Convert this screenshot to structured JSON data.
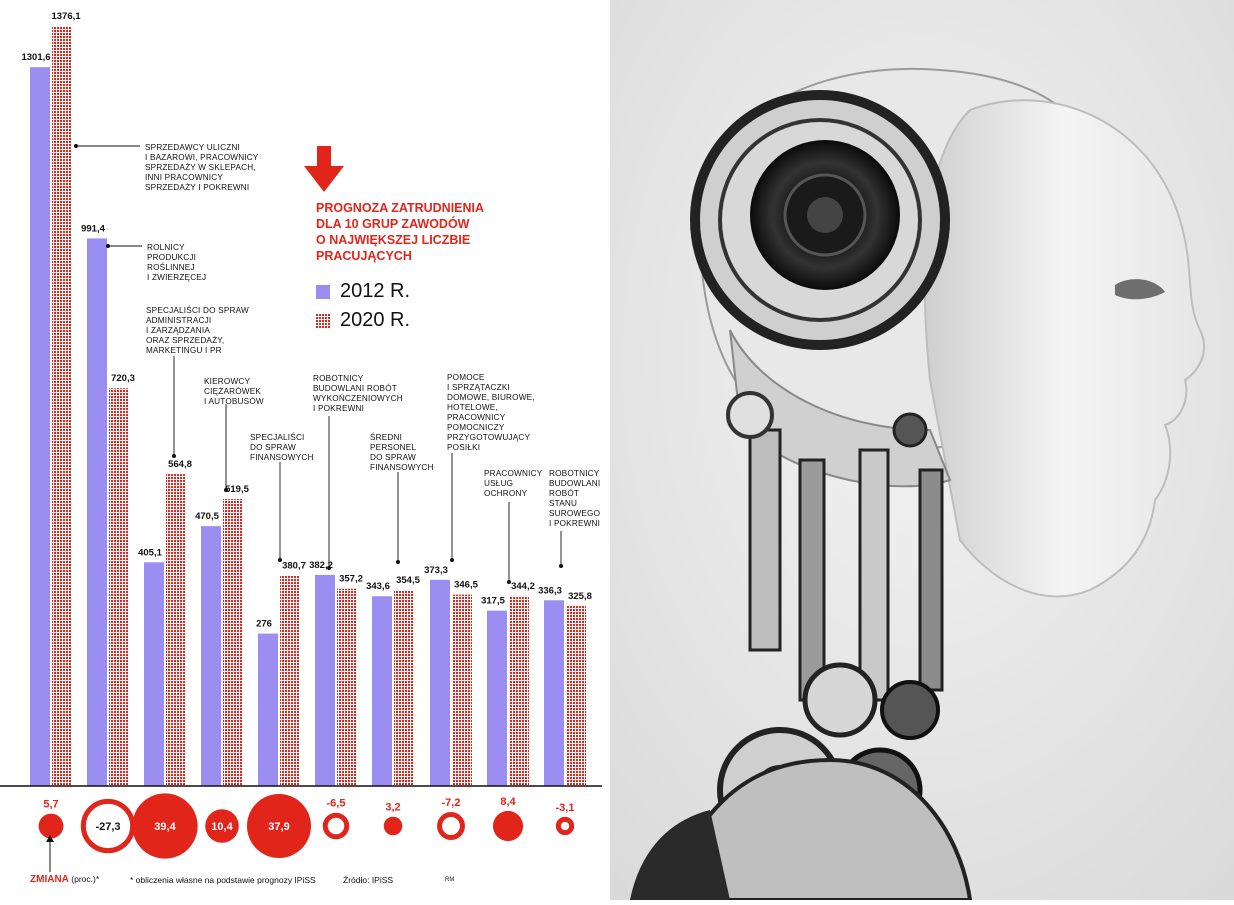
{
  "chart_data": {
    "type": "bar",
    "title": "PROGNOZA ZATRUDNIENIA DLA 10 GRUP ZAWODÓW O NAJWIĘKSZEJ LICZBIE PRACUJĄCYCH",
    "ylim": [
      0,
      1400
    ],
    "series": [
      {
        "name": "2012 R.",
        "color": "#9b8ef0",
        "values": [
          1301.6,
          991.4,
          405.1,
          470.5,
          276,
          382.2,
          343.6,
          373.3,
          317.5,
          336.3
        ],
        "labels": [
          "1301,6",
          "991,4",
          "405,1",
          "470,5",
          "276",
          "382,2",
          "343,6",
          "373,3",
          "317,5",
          "336,3"
        ]
      },
      {
        "name": "2020 R.",
        "color": "#e1251b",
        "values": [
          1376.1,
          720.3,
          564.8,
          519.5,
          380.7,
          357.2,
          354.5,
          346.5,
          344.2,
          325.8
        ],
        "labels": [
          "1376,1",
          "720,3",
          "564,8",
          "519,5",
          "380,7",
          "357,2",
          "354,5",
          "346,5",
          "344,2",
          "325,8"
        ]
      }
    ],
    "categories": [
      [
        "SPRZEDAWCY ULICZNI",
        "I BAZAROWI, PRACOWNICY",
        "SPRZEDAŻY W SKLEPACH,",
        "INNI PRACOWNICY",
        "SPRZEDAŻY I POKREWNI"
      ],
      [
        "ROLNICY",
        "PRODUKCJI",
        "ROŚLINNEJ",
        "I ZWIERZĘCEJ"
      ],
      [
        "SPECJALIŚCI DO SPRAW",
        "ADMINISTRACJI",
        "I ZARZĄDZANIA",
        "ORAZ SPRZEDAŻY,",
        "MARKETINGU I PR"
      ],
      [
        "KIEROWCY",
        "CIĘŻARÓWEK",
        "I AUTOBUSÓW"
      ],
      [
        "SPECJALIŚCI",
        "DO SPRAW",
        "FINANSOWYCH"
      ],
      [
        "ROBOTNICY",
        "BUDOWLANI ROBÓT",
        "WYKOŃCZENIOWYCH",
        "I POKREWNI"
      ],
      [
        "ŚREDNI",
        "PERSONEL",
        "DO SPRAW",
        "FINANSOWYCH"
      ],
      [
        "POMOCE",
        "I SPRZĄTACZKI",
        "DOMOWE, BIUROWE,",
        "HOTELOWE,",
        "PRACOWNICY",
        "POMOCNICZY",
        "PRZYGOTOWUJĄCY",
        "POSIŁKI"
      ],
      [
        "PRACOWNICY",
        "USŁUG",
        "OCHRONY"
      ],
      [
        "ROBOTNICY",
        "BUDOWLANI",
        "ROBÓT",
        "STANU",
        "SUROWEGO",
        "I POKREWNI"
      ]
    ],
    "change": {
      "values": [
        5.7,
        -27.3,
        39.4,
        10.4,
        37.9,
        -6.5,
        3.2,
        -7.2,
        8.4,
        -3.1
      ],
      "labels": [
        "5,7",
        "-27,3",
        "39,4",
        "10,4",
        "37,9",
        "-6,5",
        "3,2",
        "-7,2",
        "8,4",
        "-3,1"
      ],
      "inside": [
        false,
        true,
        true,
        true,
        true,
        false,
        false,
        false,
        false,
        false
      ]
    }
  },
  "header": {
    "title_line1": "PROGNOZA ZATRUDNIENIA",
    "title_line2": "DLA 10 GRUP ZAWODÓW",
    "title_line3": "O NAJWIĘKSZEJ LICZBIE",
    "title_line4": "PRACUJĄCYCH"
  },
  "legend": {
    "y2012": "2012 R.",
    "y2020": "2020 R."
  },
  "footer": {
    "change_label": "ZMIANA",
    "change_unit": "(proc.)*",
    "footnote": "* obliczenia własne na podstawie prognozy IPiSS",
    "source": "Źródło: IPiSS",
    "author": "RM"
  },
  "colors": {
    "red": "#e1251b",
    "purple": "#9b8ef0"
  }
}
